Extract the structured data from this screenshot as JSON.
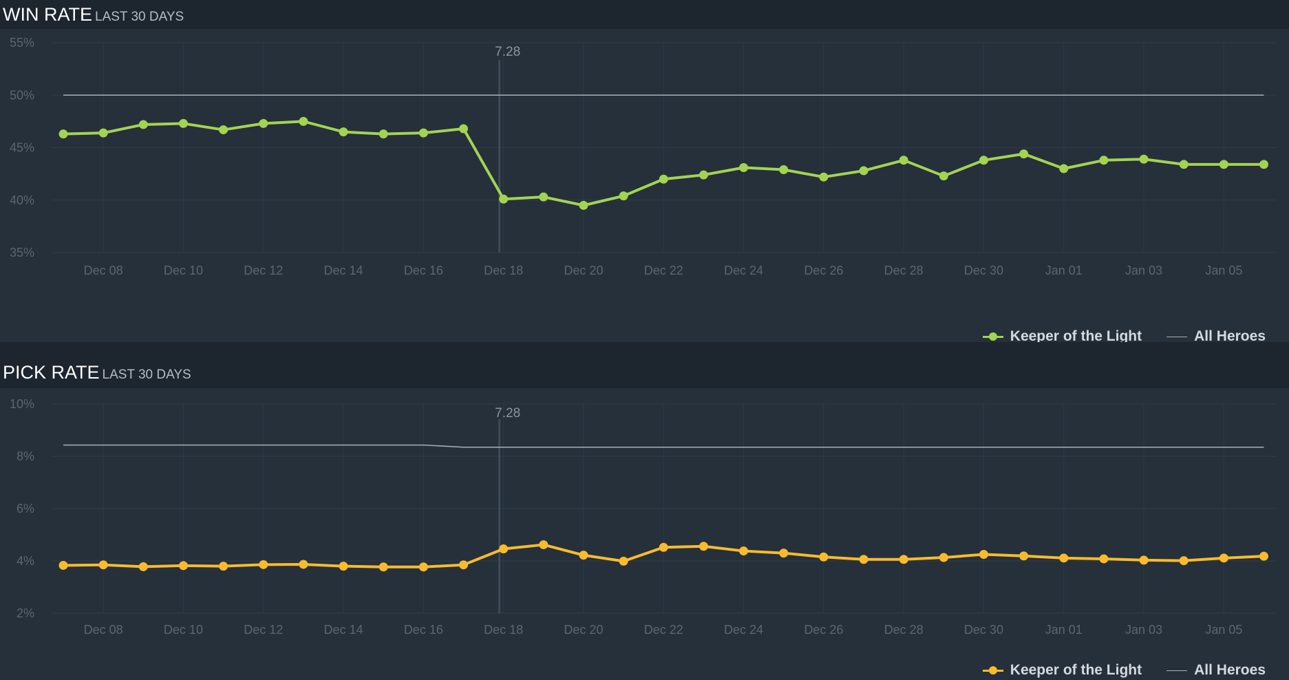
{
  "colors": {
    "keeper_win": "#a4d352",
    "keeper_pick": "#f9bb2d",
    "all_heroes": "#a9b0b6"
  },
  "chart_data": [
    {
      "id": "win",
      "type": "line",
      "title": "WIN RATE",
      "subtitle": "LAST 30 DAYS",
      "x_tick_labels": [
        "Dec 08",
        "Dec 10",
        "Dec 12",
        "Dec 14",
        "Dec 16",
        "Dec 18",
        "Dec 20",
        "Dec 22",
        "Dec 24",
        "Dec 26",
        "Dec 28",
        "Dec 30",
        "Jan 01",
        "Jan 03",
        "Jan 05"
      ],
      "y_ticks": [
        "35%",
        "40%",
        "45%",
        "50%",
        "55%"
      ],
      "ylim": [
        35,
        55
      ],
      "annotation": {
        "label": "7.28",
        "x": "Dec 18"
      },
      "x": [
        "Dec 07",
        "Dec 08",
        "Dec 09",
        "Dec 10",
        "Dec 11",
        "Dec 12",
        "Dec 13",
        "Dec 14",
        "Dec 15",
        "Dec 16",
        "Dec 17",
        "Dec 18",
        "Dec 19",
        "Dec 20",
        "Dec 21",
        "Dec 22",
        "Dec 23",
        "Dec 24",
        "Dec 25",
        "Dec 26",
        "Dec 27",
        "Dec 28",
        "Dec 29",
        "Dec 30",
        "Dec 31",
        "Jan 01",
        "Jan 02",
        "Jan 03",
        "Jan 04",
        "Jan 05",
        "Jan 06"
      ],
      "series": [
        {
          "name": "Keeper of the Light",
          "values": [
            46.3,
            46.4,
            47.2,
            47.3,
            46.7,
            47.3,
            47.5,
            46.5,
            46.3,
            46.4,
            46.8,
            40.1,
            40.3,
            39.5,
            40.4,
            42.0,
            42.4,
            43.1,
            42.9,
            42.2,
            42.8,
            43.8,
            42.3,
            43.8,
            44.4,
            43.0,
            43.8,
            43.9,
            43.4,
            43.4,
            43.4
          ]
        },
        {
          "name": "All Heroes",
          "values": [
            50.0,
            50.0,
            50.0,
            50.0,
            50.0,
            50.0,
            50.0,
            50.0,
            50.0,
            50.0,
            50.0,
            50.0,
            50.0,
            50.0,
            50.0,
            50.0,
            50.0,
            50.0,
            50.0,
            50.0,
            50.0,
            50.0,
            50.0,
            50.0,
            50.0,
            50.0,
            50.0,
            50.0,
            50.0,
            50.0,
            50.0
          ]
        }
      ],
      "legend": [
        "Keeper of the Light",
        "All Heroes"
      ]
    },
    {
      "id": "pick",
      "type": "line",
      "title": "PICK RATE",
      "subtitle": "LAST 30 DAYS",
      "x_tick_labels": [
        "Dec 08",
        "Dec 10",
        "Dec 12",
        "Dec 14",
        "Dec 16",
        "Dec 18",
        "Dec 20",
        "Dec 22",
        "Dec 24",
        "Dec 26",
        "Dec 28",
        "Dec 30",
        "Jan 01",
        "Jan 03",
        "Jan 05"
      ],
      "y_ticks": [
        "2%",
        "4%",
        "6%",
        "8%",
        "10%"
      ],
      "ylim": [
        2,
        10
      ],
      "annotation": {
        "label": "7.28",
        "x": "Dec 18"
      },
      "x": [
        "Dec 07",
        "Dec 08",
        "Dec 09",
        "Dec 10",
        "Dec 11",
        "Dec 12",
        "Dec 13",
        "Dec 14",
        "Dec 15",
        "Dec 16",
        "Dec 17",
        "Dec 18",
        "Dec 19",
        "Dec 20",
        "Dec 21",
        "Dec 22",
        "Dec 23",
        "Dec 24",
        "Dec 25",
        "Dec 26",
        "Dec 27",
        "Dec 28",
        "Dec 29",
        "Dec 30",
        "Dec 31",
        "Jan 01",
        "Jan 02",
        "Jan 03",
        "Jan 04",
        "Jan 05",
        "Jan 06"
      ],
      "series": [
        {
          "name": "Keeper of the Light",
          "values": [
            3.83,
            3.85,
            3.78,
            3.82,
            3.8,
            3.86,
            3.87,
            3.8,
            3.77,
            3.77,
            3.85,
            4.46,
            4.62,
            4.22,
            3.99,
            4.52,
            4.56,
            4.38,
            4.3,
            4.15,
            4.06,
            4.06,
            4.13,
            4.25,
            4.19,
            4.11,
            4.08,
            4.03,
            4.01,
            4.11,
            4.18
          ]
        },
        {
          "name": "All Heroes",
          "values": [
            8.43,
            8.43,
            8.43,
            8.43,
            8.43,
            8.43,
            8.43,
            8.43,
            8.43,
            8.43,
            8.35,
            8.35,
            8.35,
            8.35,
            8.35,
            8.35,
            8.35,
            8.35,
            8.35,
            8.35,
            8.35,
            8.35,
            8.35,
            8.35,
            8.35,
            8.35,
            8.35,
            8.35,
            8.35,
            8.35,
            8.35
          ]
        }
      ],
      "legend": [
        "Keeper of the Light",
        "All Heroes"
      ]
    }
  ]
}
